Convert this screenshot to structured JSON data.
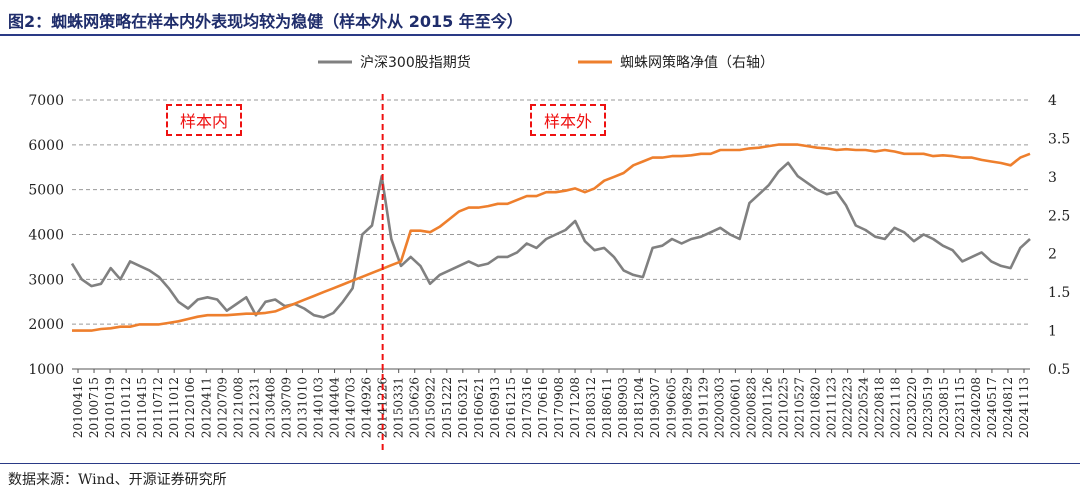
{
  "title": "图2：蜘蛛网策略在样本内外表现均较为稳健（样本外从 2015 年至今）",
  "source": "数据来源：Wind、开源证券研究所",
  "chart_data": {
    "type": "line",
    "annotations": {
      "in_sample": "样本内",
      "out_sample": "样本外"
    },
    "split_label": "20141226",
    "legend_position": "top-center",
    "grid": true,
    "left_axis": {
      "ylim": [
        1000,
        7000
      ],
      "ticks": [
        "1000",
        "2000",
        "3000",
        "4000",
        "5000",
        "6000",
        "7000"
      ]
    },
    "right_axis": {
      "ylim": [
        0.5,
        4
      ],
      "ticks": [
        "0.5",
        "1",
        "1.5",
        "2",
        "2.5",
        "3",
        "3.5",
        "4"
      ]
    },
    "x_tick_labels": [
      "20100416",
      "20100715",
      "20101019",
      "20110112",
      "20110415",
      "20110712",
      "20111012",
      "20120106",
      "20120411",
      "20120709",
      "20121008",
      "20121231",
      "20130408",
      "20130709",
      "20131010",
      "20140103",
      "20140404",
      "20140703",
      "20140926",
      "20141226",
      "20150331",
      "20150626",
      "20150922",
      "20151222",
      "20160321",
      "20160621",
      "20160913",
      "20161215",
      "20170316",
      "20170616",
      "20170908",
      "20171208",
      "20180312",
      "20180611",
      "20180903",
      "20181204",
      "20190307",
      "20190605",
      "20190829",
      "20191129",
      "20200303",
      "20200601",
      "20200828",
      "20201126",
      "20210225",
      "20210527",
      "20210820",
      "20211123",
      "20220223",
      "20220524",
      "20220818",
      "20221118",
      "20230220",
      "20230519",
      "20230815",
      "20231115",
      "20240208",
      "20240517",
      "20240812",
      "20241113"
    ],
    "series": [
      {
        "name": "沪深300股指期货",
        "color": "#808080",
        "axis": "left",
        "values": [
          3350,
          3000,
          2850,
          2900,
          3250,
          3000,
          3400,
          3300,
          3200,
          3050,
          2800,
          2500,
          2350,
          2550,
          2600,
          2550,
          2300,
          2450,
          2600,
          2200,
          2500,
          2550,
          2400,
          2450,
          2350,
          2200,
          2150,
          2250,
          2500,
          2800,
          4000,
          4200,
          5300,
          3900,
          3300,
          3500,
          3300,
          2900,
          3100,
          3200,
          3300,
          3400,
          3300,
          3350,
          3500,
          3500,
          3600,
          3800,
          3700,
          3900,
          4000,
          4100,
          4300,
          3850,
          3650,
          3700,
          3500,
          3200,
          3100,
          3050,
          3700,
          3750,
          3900,
          3800,
          3900,
          3950,
          4050,
          4150,
          4000,
          3900,
          4700,
          4900,
          5100,
          5400,
          5600,
          5300,
          5150,
          5000,
          4900,
          4950,
          4650,
          4200,
          4100,
          3950,
          3900,
          4150,
          4050,
          3850,
          4000,
          3900,
          3750,
          3650,
          3400,
          3500,
          3600,
          3400,
          3300,
          3250,
          3700,
          3900
        ]
      },
      {
        "name": "蜘蛛网策略净值（右轴）",
        "color": "#ee7f2d",
        "axis": "right",
        "values": [
          1.0,
          1.0,
          1.0,
          1.02,
          1.03,
          1.05,
          1.05,
          1.08,
          1.08,
          1.08,
          1.1,
          1.12,
          1.15,
          1.18,
          1.2,
          1.2,
          1.2,
          1.21,
          1.22,
          1.22,
          1.23,
          1.25,
          1.3,
          1.35,
          1.4,
          1.45,
          1.5,
          1.55,
          1.6,
          1.65,
          1.7,
          1.75,
          1.8,
          1.85,
          1.9,
          2.3,
          2.3,
          2.28,
          2.35,
          2.45,
          2.55,
          2.6,
          2.6,
          2.62,
          2.65,
          2.65,
          2.7,
          2.75,
          2.75,
          2.8,
          2.8,
          2.82,
          2.85,
          2.8,
          2.85,
          2.95,
          3.0,
          3.05,
          3.15,
          3.2,
          3.25,
          3.25,
          3.27,
          3.27,
          3.28,
          3.3,
          3.3,
          3.35,
          3.35,
          3.35,
          3.37,
          3.38,
          3.4,
          3.42,
          3.42,
          3.42,
          3.4,
          3.38,
          3.37,
          3.35,
          3.36,
          3.35,
          3.35,
          3.33,
          3.35,
          3.33,
          3.3,
          3.3,
          3.3,
          3.27,
          3.28,
          3.27,
          3.25,
          3.25,
          3.22,
          3.2,
          3.18,
          3.15,
          3.25,
          3.3
        ]
      }
    ]
  }
}
